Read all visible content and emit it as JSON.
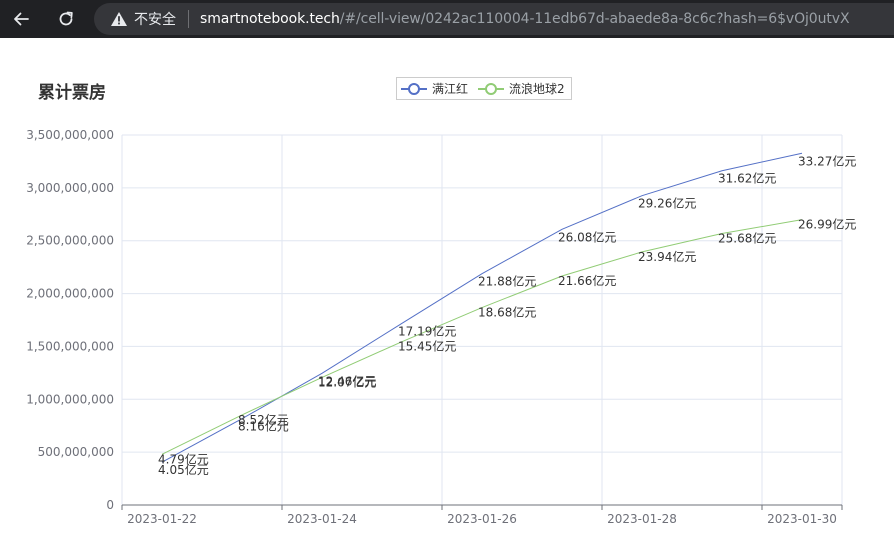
{
  "browser": {
    "security_label": "不安全",
    "url_host": "smartnotebook.tech",
    "url_path": "/#/cell-view/0242ac110004-11edb67d-abaede8a-8c6c?hash=6$vOj0utvX"
  },
  "chart_data": {
    "type": "line",
    "title": "累计票房",
    "xlabel": "",
    "ylabel": "",
    "legend_position": "top-center",
    "grid": true,
    "x": [
      "2023-01-22",
      "2023-01-23",
      "2023-01-24",
      "2023-01-25",
      "2023-01-26",
      "2023-01-27",
      "2023-01-28",
      "2023-01-29",
      "2023-01-30"
    ],
    "x_tick_labels": [
      "2023-01-22",
      "2023-01-24",
      "2023-01-26",
      "2023-01-28",
      "2023-01-30"
    ],
    "ylim": [
      0,
      3500000000
    ],
    "y_ticks": [
      0,
      500000000,
      1000000000,
      1500000000,
      2000000000,
      2500000000,
      3000000000,
      3500000000
    ],
    "y_tick_labels": [
      "0",
      "500,000,000",
      "1,000,000,000",
      "1,500,000,000",
      "2,000,000,000",
      "2,500,000,000",
      "3,000,000,000",
      "3,500,000,000"
    ],
    "series": [
      {
        "name": "满江红",
        "color": "#5470c6",
        "values": [
          405000000,
          816000000,
          1246000000,
          1719000000,
          2188000000,
          2608000000,
          2926000000,
          3162000000,
          3327000000
        ],
        "labels": [
          "4.05亿元",
          "8.16亿元",
          "12.46亿元",
          "17.19亿元",
          "21.88亿元",
          "26.08亿元",
          "29.26亿元",
          "31.62亿元",
          "33.27亿元"
        ]
      },
      {
        "name": "流浪地球2",
        "color": "#91cc75",
        "values": [
          479000000,
          852000000,
          1207000000,
          1545000000,
          1868000000,
          2166000000,
          2394000000,
          2568000000,
          2699000000
        ],
        "labels": [
          "4.79亿元",
          "8.52亿元",
          "12.07亿元",
          "15.45亿元",
          "18.68亿元",
          "21.66亿元",
          "23.94亿元",
          "25.68亿元",
          "26.99亿元"
        ]
      }
    ]
  }
}
